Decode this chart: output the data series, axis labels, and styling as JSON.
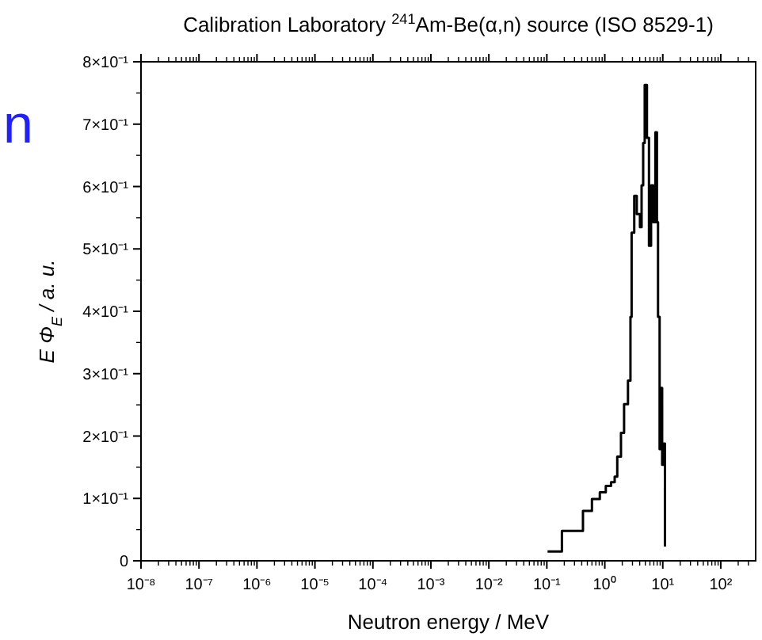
{
  "chart_data": {
    "type": "step",
    "title": "Calibration Laboratory $^{241}$Am-Be(α,n) source (ISO 8529-1)",
    "xlabel": "Neutron energy / MeV",
    "ylabel": "E Φ$_{E}$ / a. u.",
    "annotations": [
      "n"
    ],
    "log": "x",
    "x": [
      0.103,
      0.182,
      0.42,
      0.6,
      0.82,
      1.04,
      1.28,
      1.48,
      1.64,
      1.9,
      2.15,
      2.51,
      2.77,
      2.9,
      3.22,
      3.56,
      4.04,
      4.31,
      4.59,
      4.88,
      5.33,
      5.78,
      6.28,
      6.86,
      7.45,
      7.93,
      8.28,
      8.82,
      9.16,
      9.75,
      10.4,
      10.9
    ],
    "series": [
      {
        "color": "#000000",
        "values": [
          0.015,
          0.048,
          0.08,
          0.099,
          0.11,
          0.12,
          0.126,
          0.135,
          0.167,
          0.205,
          0.251,
          0.289,
          0.391,
          0.526,
          0.585,
          0.556,
          0.535,
          0.602,
          0.67,
          0.763,
          0.678,
          0.505,
          0.602,
          0.543,
          0.687,
          0.543,
          0.391,
          0.179,
          0.277,
          0.154,
          0.188,
          0.023
        ]
      }
    ],
    "xlim": [
      1e-08,
      400
    ],
    "ylim": [
      0,
      0.8
    ],
    "xticks": [
      {
        "value": 1e-08,
        "label": "10⁻⁸"
      },
      {
        "value": 1e-07,
        "label": "10⁻⁷"
      },
      {
        "value": 1e-06,
        "label": "10⁻⁶"
      },
      {
        "value": 1e-05,
        "label": "10⁻⁵"
      },
      {
        "value": 0.0001,
        "label": "10⁻⁴"
      },
      {
        "value": 0.001,
        "label": "10⁻³"
      },
      {
        "value": 0.01,
        "label": "10⁻²"
      },
      {
        "value": 0.1,
        "label": "10⁻¹"
      },
      {
        "value": 1,
        "label": "10⁰"
      },
      {
        "value": 10,
        "label": "10¹"
      },
      {
        "value": 100,
        "label": "10²"
      }
    ],
    "yticks": [
      0,
      {
        "value": 0.1,
        "label": "1×10⁻¹"
      },
      {
        "value": 0.2,
        "label": "2×10⁻¹"
      },
      {
        "value": 0.3,
        "label": "3×10⁻¹"
      },
      {
        "value": 0.4,
        "label": "4×10⁻¹"
      },
      {
        "value": 0.5,
        "label": "5×10⁻¹"
      },
      {
        "value": 0.6,
        "label": "6×10⁻¹"
      },
      {
        "value": 0.7,
        "label": "7×10⁻¹"
      },
      {
        "value": 0.8,
        "label": "8×10⁻¹"
      }
    ],
    "line_style": "solid"
  }
}
